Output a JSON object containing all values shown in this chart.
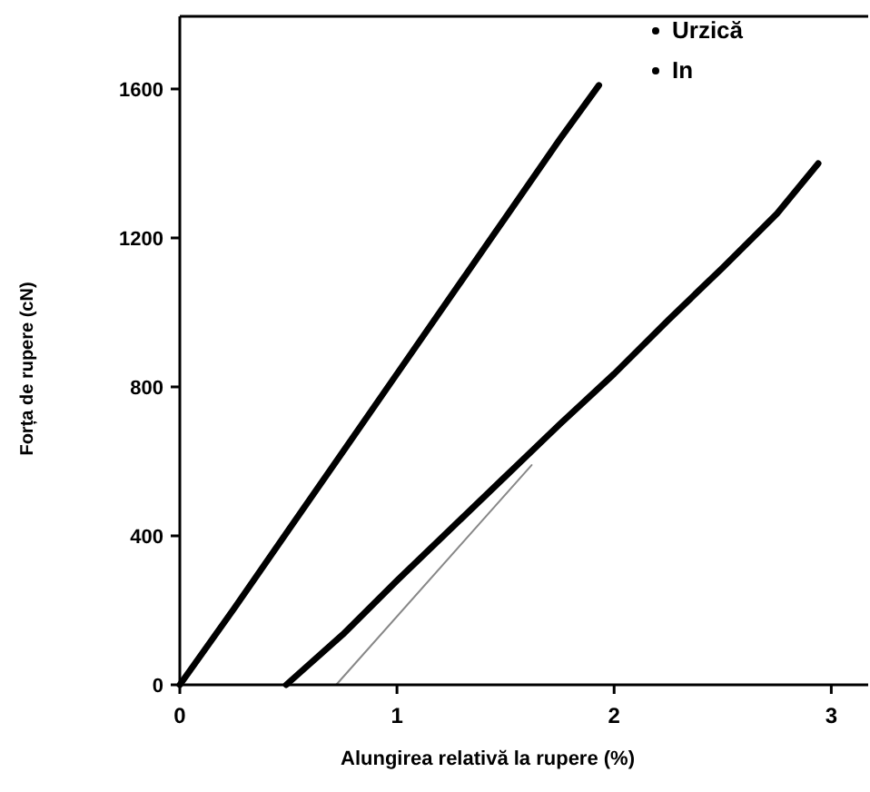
{
  "chart_data": {
    "type": "line",
    "xlabel": "Alungirea relativă la rupere (%)",
    "ylabel": "Forța de rupere (cN)",
    "xlim": [
      0,
      3.17
    ],
    "xticks": [
      0,
      1,
      2,
      3
    ],
    "ylim": [
      0,
      1795
    ],
    "yticks": [
      0,
      400,
      800,
      1200,
      1600
    ],
    "grid": false,
    "legend": "top right",
    "series": [
      {
        "name": "Urzică",
        "color": "#000000",
        "x": [
          0,
          0.25,
          0.5,
          0.75,
          1,
          1.25,
          1.5,
          1.75,
          1.93
        ],
        "values": [
          0,
          205,
          415,
          625,
          835,
          1045,
          1255,
          1465,
          1610
        ]
      },
      {
        "name": "In",
        "color": "#000000",
        "x": [
          0.49,
          0.75,
          1,
          1.25,
          1.5,
          1.75,
          2,
          2.25,
          2.5,
          2.75,
          2.94
        ],
        "values": [
          0,
          135,
          280,
          420,
          560,
          700,
          835,
          980,
          1120,
          1265,
          1400
        ]
      },
      {
        "color": "#888888",
        "x": [
          0.72,
          1.62
        ],
        "values": [
          0,
          590
        ]
      }
    ]
  }
}
